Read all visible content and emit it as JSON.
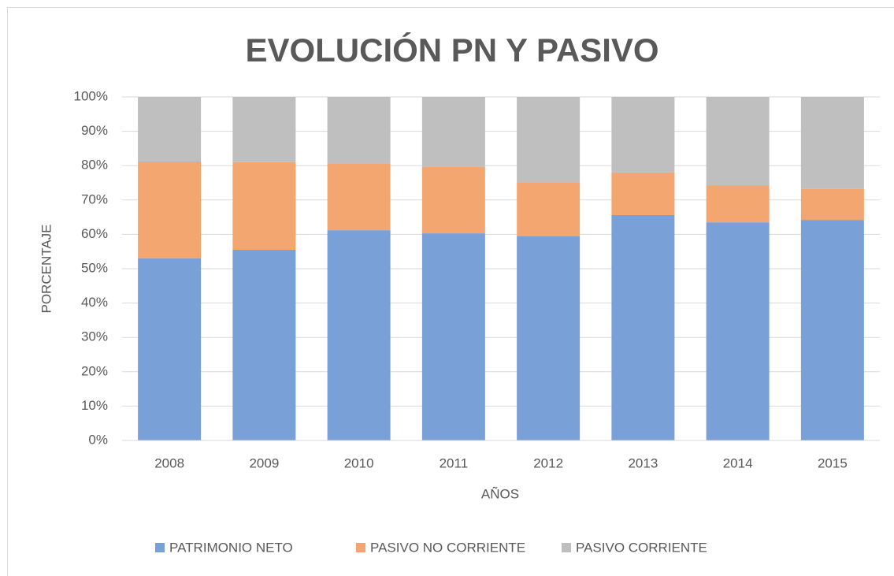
{
  "chart_data": {
    "type": "stacked_bar_100",
    "title": "EVOLUCIÓN PN Y PASIVO",
    "y_label": "PORCENTAJE",
    "x_label": "AÑOS",
    "categories": [
      "2008",
      "2009",
      "2010",
      "2011",
      "2012",
      "2013",
      "2014",
      "2015"
    ],
    "series": [
      {
        "name": "PATRIMONIO NETO",
        "color": "#7aa0d8",
        "values": [
          53.0,
          55.5,
          61.2,
          60.3,
          59.4,
          65.6,
          63.5,
          64.2
        ]
      },
      {
        "name": "PASIVO NO CORRIENTE",
        "color": "#f4a671",
        "values": [
          28.2,
          25.5,
          19.5,
          19.3,
          15.8,
          12.4,
          10.8,
          9.0
        ]
      },
      {
        "name": "PASIVO CORRIENTE",
        "color": "#bfbfbf",
        "values": [
          18.8,
          19.0,
          19.3,
          20.4,
          24.8,
          22.0,
          25.7,
          26.8
        ]
      }
    ],
    "ylim": [
      0,
      100
    ],
    "yticks": [
      {
        "value": 0,
        "label": "0%"
      },
      {
        "value": 10,
        "label": "10%"
      },
      {
        "value": 20,
        "label": "20%"
      },
      {
        "value": 30,
        "label": "30%"
      },
      {
        "value": 40,
        "label": "40%"
      },
      {
        "value": 50,
        "label": "50%"
      },
      {
        "value": 60,
        "label": "60%"
      },
      {
        "value": 70,
        "label": "70%"
      },
      {
        "value": 80,
        "label": "80%"
      },
      {
        "value": 90,
        "label": "90%"
      },
      {
        "value": 100,
        "label": "100%"
      }
    ],
    "grid": true,
    "legend": "bottom"
  }
}
